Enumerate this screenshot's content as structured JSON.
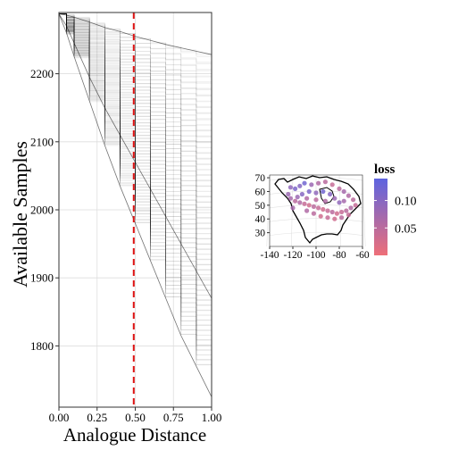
{
  "chart_data": [
    {
      "type": "line",
      "xlabel": "Analogue Distance",
      "ylabel": "Available Samples",
      "xlim": [
        0,
        1
      ],
      "ylim": [
        1710,
        2290
      ],
      "xticks": [
        "0.00",
        "0.25",
        "0.50",
        "0.75",
        "1.00"
      ],
      "yticks": [
        1800,
        1900,
        2000,
        2100,
        2200
      ],
      "grid": true,
      "colors": {
        "lines": "#000000",
        "threshold": "#dd1111"
      },
      "series": [
        {
          "x": [
            0,
            0.05,
            0.1,
            0.2,
            0.3,
            0.4,
            0.5,
            0.6,
            0.7,
            0.8,
            0.9,
            1.0
          ],
          "values": [
            2288,
            2286,
            2283,
            2276,
            2268,
            2262,
            2255,
            2249,
            2243,
            2238,
            2233,
            2228
          ]
        },
        {
          "x": [
            0,
            0.05,
            0.1,
            0.2,
            0.3,
            0.4,
            0.5,
            0.6,
            0.7,
            0.8,
            0.9,
            1.0
          ],
          "values": [
            2288,
            2270,
            2245,
            2195,
            2150,
            2110,
            2070,
            2030,
            1990,
            1950,
            1910,
            1870
          ]
        },
        {
          "x": [
            0,
            0.05,
            0.1,
            0.2,
            0.3,
            0.4,
            0.5,
            0.6,
            0.7,
            0.8,
            0.9,
            1.0
          ],
          "values": [
            2288,
            2260,
            2225,
            2160,
            2095,
            2035,
            1980,
            1925,
            1870,
            1815,
            1770,
            1725
          ]
        }
      ],
      "threshold": {
        "x": 0.49
      }
    },
    {
      "type": "scatter",
      "xlim": [
        -140,
        -60
      ],
      "ylim": [
        20,
        72
      ],
      "xticks": [
        -140,
        -120,
        -100,
        -80,
        -60
      ],
      "yticks": [
        30,
        40,
        50,
        60,
        70
      ],
      "legend": {
        "title": "loss",
        "placement": "right",
        "ticks": [
          "0.10",
          "0.05"
        ],
        "low_color": "#ee6f78",
        "high_color": "#5d64e0",
        "range": [
          0,
          0.14
        ]
      },
      "points": [
        {
          "lon": -122,
          "lat": 63,
          "loss": 0.09
        },
        {
          "lon": -118,
          "lat": 62,
          "loss": 0.11
        },
        {
          "lon": -114,
          "lat": 64,
          "loss": 0.1
        },
        {
          "lon": -110,
          "lat": 66,
          "loss": 0.12
        },
        {
          "lon": -104,
          "lat": 65,
          "loss": 0.08
        },
        {
          "lon": -98,
          "lat": 66,
          "loss": 0.06
        },
        {
          "lon": -92,
          "lat": 67,
          "loss": 0.05
        },
        {
          "lon": -86,
          "lat": 65,
          "loss": 0.04
        },
        {
          "lon": -80,
          "lat": 62,
          "loss": 0.05
        },
        {
          "lon": -76,
          "lat": 60,
          "loss": 0.07
        },
        {
          "lon": -72,
          "lat": 57,
          "loss": 0.06
        },
        {
          "lon": -68,
          "lat": 54,
          "loss": 0.05
        },
        {
          "lon": -66,
          "lat": 50,
          "loss": 0.04
        },
        {
          "lon": -70,
          "lat": 48,
          "loss": 0.06
        },
        {
          "lon": -74,
          "lat": 46,
          "loss": 0.05
        },
        {
          "lon": -78,
          "lat": 45,
          "loss": 0.04
        },
        {
          "lon": -82,
          "lat": 44,
          "loss": 0.03
        },
        {
          "lon": -86,
          "lat": 45,
          "loss": 0.05
        },
        {
          "lon": -90,
          "lat": 46,
          "loss": 0.04
        },
        {
          "lon": -94,
          "lat": 47,
          "loss": 0.03
        },
        {
          "lon": -98,
          "lat": 48,
          "loss": 0.04
        },
        {
          "lon": -102,
          "lat": 49,
          "loss": 0.05
        },
        {
          "lon": -106,
          "lat": 50,
          "loss": 0.03
        },
        {
          "lon": -110,
          "lat": 51,
          "loss": 0.04
        },
        {
          "lon": -114,
          "lat": 52,
          "loss": 0.06
        },
        {
          "lon": -118,
          "lat": 53,
          "loss": 0.05
        },
        {
          "lon": -122,
          "lat": 55,
          "loss": 0.07
        },
        {
          "lon": -124,
          "lat": 58,
          "loss": 0.08
        },
        {
          "lon": -112,
          "lat": 58,
          "loss": 0.1
        },
        {
          "lon": -106,
          "lat": 60,
          "loss": 0.11
        },
        {
          "lon": -100,
          "lat": 59,
          "loss": 0.09
        },
        {
          "lon": -94,
          "lat": 60,
          "loss": 0.12
        },
        {
          "lon": -88,
          "lat": 58,
          "loss": 0.1
        },
        {
          "lon": -84,
          "lat": 55,
          "loss": 0.08
        },
        {
          "lon": -80,
          "lat": 52,
          "loss": 0.09
        },
        {
          "lon": -76,
          "lat": 53,
          "loss": 0.07
        },
        {
          "lon": -92,
          "lat": 53,
          "loss": 0.06
        },
        {
          "lon": -100,
          "lat": 54,
          "loss": 0.05
        },
        {
          "lon": -108,
          "lat": 55,
          "loss": 0.06
        },
        {
          "lon": -116,
          "lat": 56,
          "loss": 0.08
        },
        {
          "lon": -96,
          "lat": 42,
          "loss": 0.03
        },
        {
          "lon": -90,
          "lat": 41,
          "loss": 0.04
        },
        {
          "lon": -84,
          "lat": 40,
          "loss": 0.03
        },
        {
          "lon": -78,
          "lat": 41,
          "loss": 0.05
        },
        {
          "lon": -72,
          "lat": 43,
          "loss": 0.04
        },
        {
          "lon": -102,
          "lat": 44,
          "loss": 0.05
        },
        {
          "lon": -108,
          "lat": 46,
          "loss": 0.06
        },
        {
          "lon": -120,
          "lat": 48,
          "loss": 0.07
        }
      ]
    }
  ]
}
